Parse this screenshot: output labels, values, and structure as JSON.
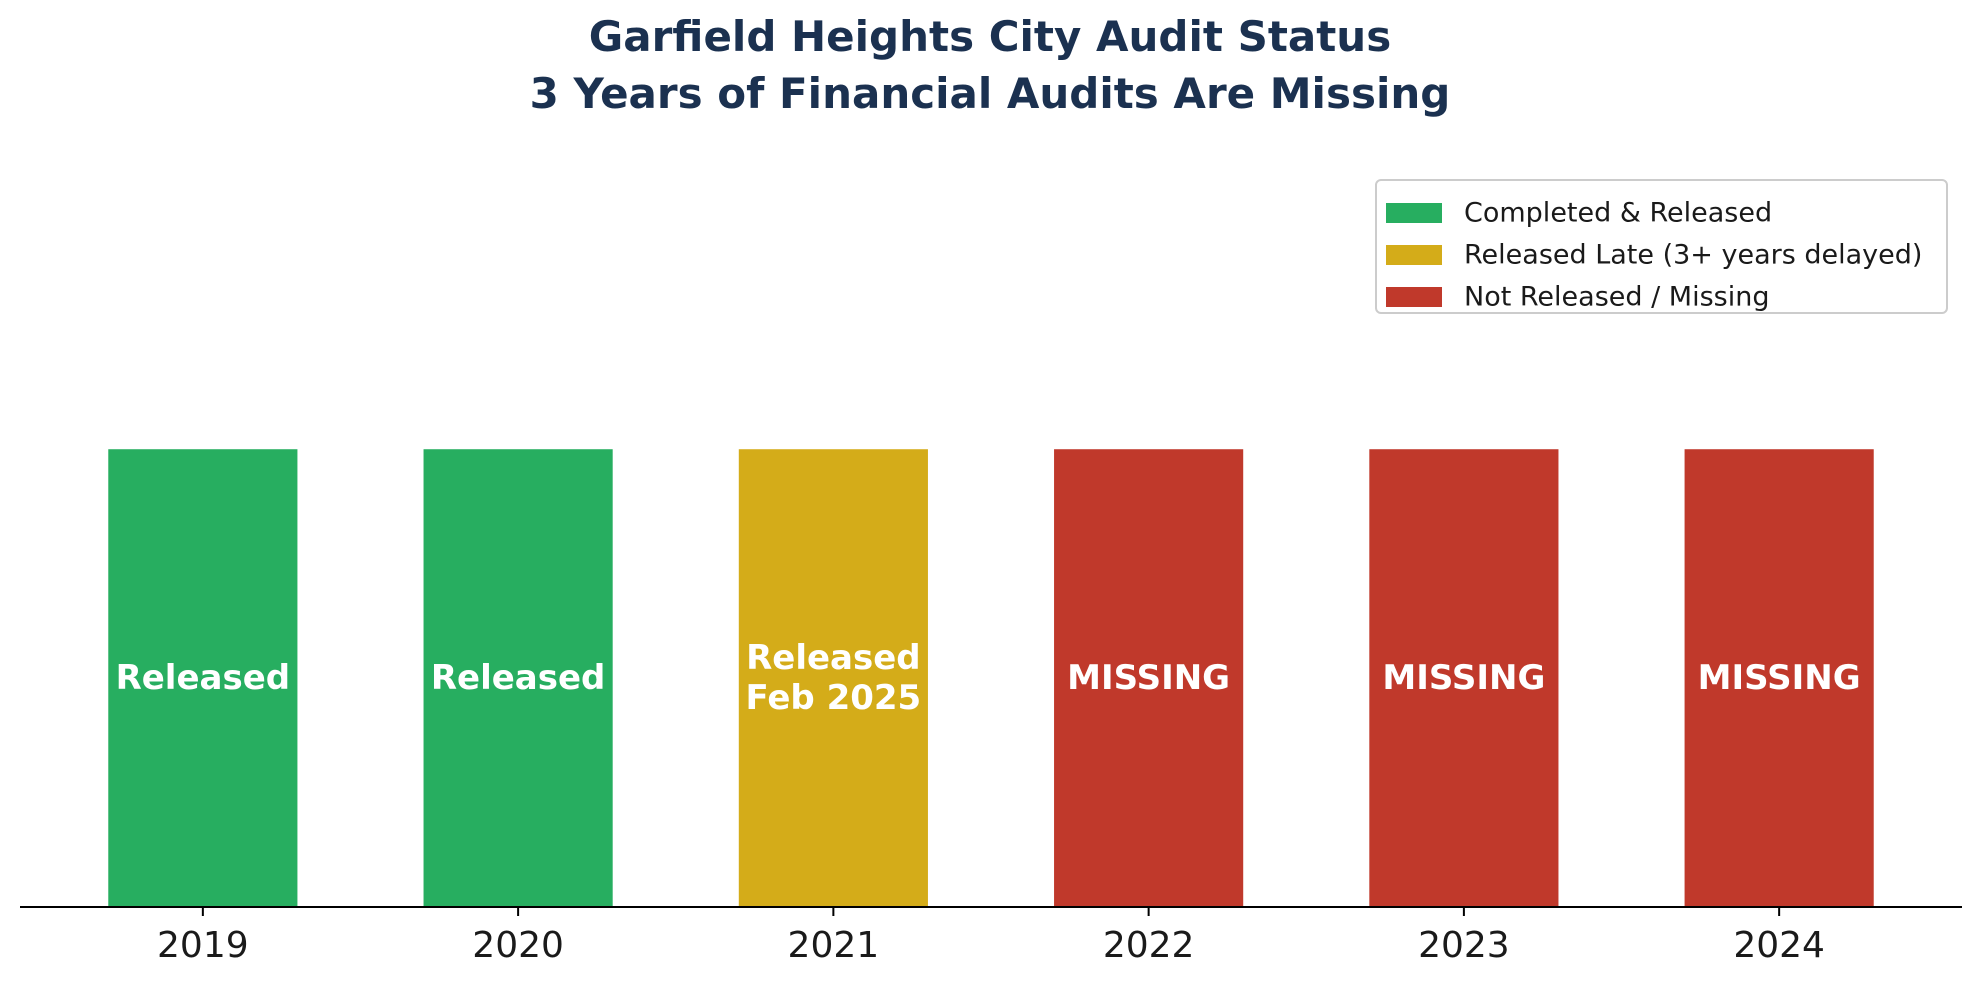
{
  "chart_data": {
    "type": "bar",
    "title": "Garfield Heights City Audit Status",
    "subtitle": "3 Years of Financial Audits Are Missing",
    "xlabel": "",
    "ylabel": "",
    "categories": [
      "2019",
      "2020",
      "2021",
      "2022",
      "2023",
      "2024"
    ],
    "values": [
      1,
      1,
      1,
      1,
      1,
      1
    ],
    "ylim": [
      0,
      1.35
    ],
    "status": [
      "completed",
      "completed",
      "late",
      "missing",
      "missing",
      "missing"
    ],
    "bar_labels": [
      [
        "Released"
      ],
      [
        "Released"
      ],
      [
        "Released",
        "Feb 2025"
      ],
      [
        "MISSING"
      ],
      [
        "MISSING"
      ],
      [
        "MISSING"
      ]
    ],
    "legend": {
      "position": "upper-right",
      "entries": [
        {
          "key": "completed",
          "label": "Completed & Released",
          "color": "#27ae60"
        },
        {
          "key": "late",
          "label": "Released Late (3+ years delayed)",
          "color": "#d4ac19"
        },
        {
          "key": "missing",
          "label": "Not Released / Missing",
          "color": "#c0392b"
        }
      ]
    },
    "grid": false
  },
  "colors": {
    "title": "#1b3150",
    "bar_text": "#ffffff",
    "axis": "#000000",
    "tick_text": "#1a1a1a"
  }
}
